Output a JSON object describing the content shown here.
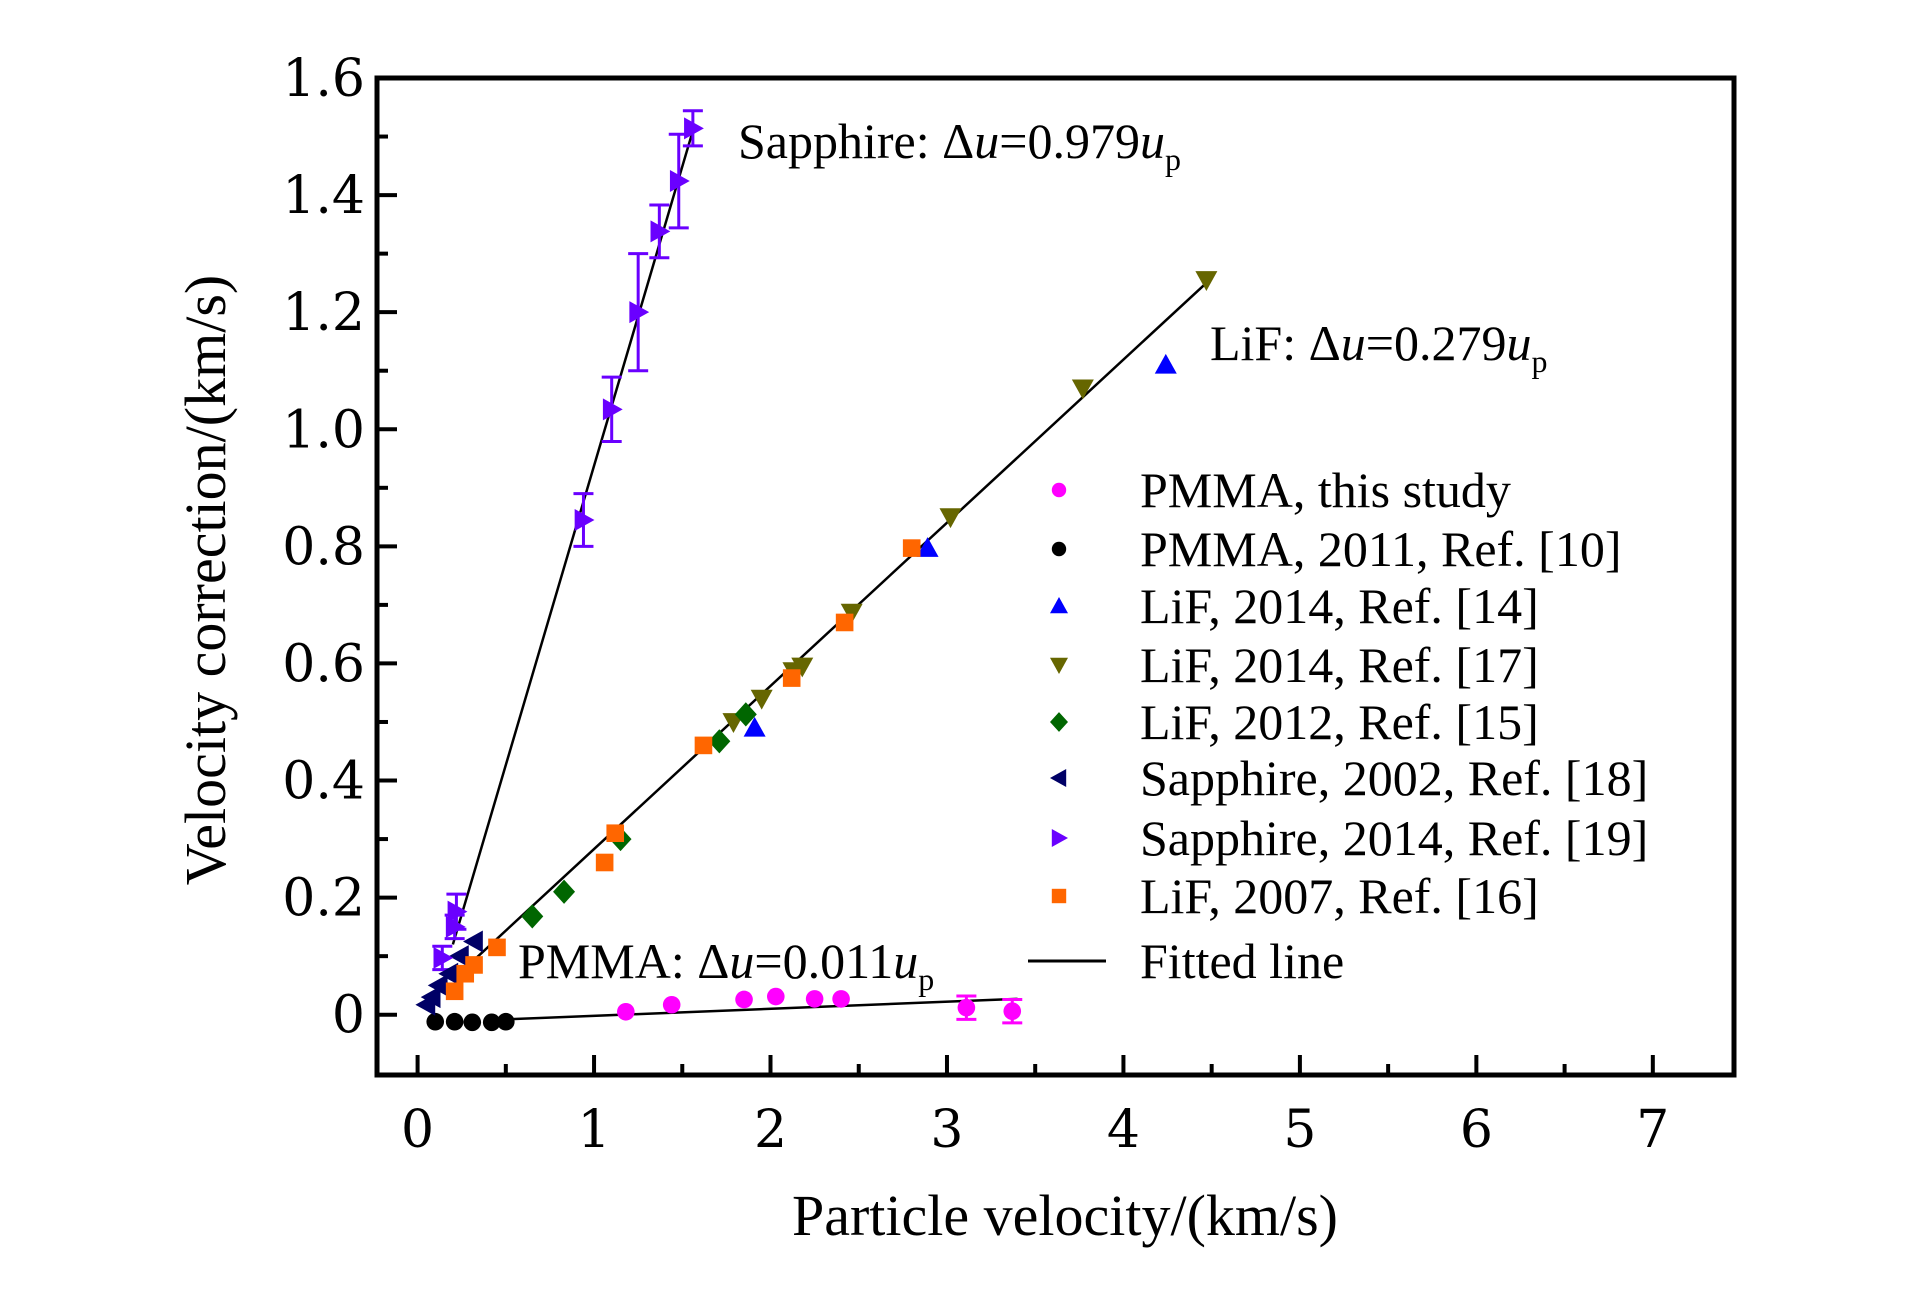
{
  "chart_data": {
    "type": "scatter",
    "title": "",
    "xlabel": "Particle velocity/(km/s)",
    "ylabel": "Velocity correction/(km/s)",
    "xlim": [
      -0.23,
      7.46
    ],
    "ylim": [
      -0.103,
      1.6
    ],
    "x_ticks": [
      0,
      1,
      2,
      3,
      4,
      5,
      6,
      7
    ],
    "x_tick_labels": [
      "0",
      "1",
      "2",
      "3",
      "4",
      "5",
      "6",
      "7"
    ],
    "x_minor_ticks": [
      0.5,
      1.5,
      2.5,
      3.5,
      4.5,
      5.5,
      6.5,
      7.5
    ],
    "y_ticks": [
      0,
      0.2,
      0.4,
      0.6,
      0.8,
      1.0,
      1.2,
      1.4,
      1.6
    ],
    "y_tick_labels": [
      "0",
      "0.2",
      "0.4",
      "0.6",
      "0.8",
      "1.0",
      "1.2",
      "1.4",
      "1.6"
    ],
    "y_minor_ticks": [
      0.1,
      0.3,
      0.5,
      0.7,
      0.9,
      1.1,
      1.3,
      1.5
    ],
    "grid": false,
    "legend_position": "center-right",
    "series": [
      {
        "name": "PMMA, this study",
        "marker": "circle",
        "color": "#ff00ff",
        "points": [
          [
            1.18,
            0.005
          ],
          [
            1.44,
            0.017
          ],
          [
            1.85,
            0.026
          ],
          [
            2.03,
            0.031
          ],
          [
            2.25,
            0.027
          ],
          [
            2.4,
            0.027
          ],
          [
            3.11,
            0.012
          ],
          [
            3.37,
            0.006
          ]
        ],
        "errors": [
          0,
          0,
          0,
          0,
          0,
          0,
          0.02,
          0.02
        ]
      },
      {
        "name": "PMMA, 2011, Ref. [10]",
        "marker": "circle",
        "color": "#000000",
        "points": [
          [
            0.1,
            -0.012
          ],
          [
            0.21,
            -0.012
          ],
          [
            0.31,
            -0.013
          ],
          [
            0.42,
            -0.013
          ],
          [
            0.5,
            -0.012
          ]
        ]
      },
      {
        "name": "LiF, 2014, Ref. [14]",
        "marker": "triangle-up",
        "color": "#0000ff",
        "points": [
          [
            1.91,
            0.49
          ],
          [
            2.89,
            0.797
          ],
          [
            4.24,
            1.11
          ]
        ]
      },
      {
        "name": "LiF, 2014, Ref. [17]",
        "marker": "triangle-down",
        "color": "#666600",
        "points": [
          [
            1.79,
            0.5
          ],
          [
            1.95,
            0.54
          ],
          [
            2.13,
            0.587
          ],
          [
            2.18,
            0.595
          ],
          [
            2.46,
            0.687
          ],
          [
            3.02,
            0.85
          ],
          [
            3.77,
            1.07
          ],
          [
            4.47,
            1.255
          ]
        ]
      },
      {
        "name": "LiF, 2012, Ref. [15]",
        "marker": "diamond",
        "color": "#006600",
        "points": [
          [
            0.65,
            0.168
          ],
          [
            0.83,
            0.21
          ],
          [
            1.15,
            0.3
          ],
          [
            1.71,
            0.467
          ],
          [
            1.86,
            0.513
          ]
        ]
      },
      {
        "name": "Sapphire, 2002, Ref. [18]",
        "marker": "triangle-left",
        "color": "#000066",
        "points": [
          [
            0.05,
            0.017
          ],
          [
            0.08,
            0.03
          ],
          [
            0.12,
            0.05
          ],
          [
            0.18,
            0.07
          ],
          [
            0.24,
            0.1
          ],
          [
            0.32,
            0.125
          ]
        ]
      },
      {
        "name": "Sapphire, 2014, Ref. [19]",
        "marker": "triangle-right",
        "color": "#6a00ff",
        "points": [
          [
            0.14,
            0.097
          ],
          [
            0.21,
            0.15
          ],
          [
            0.22,
            0.176
          ],
          [
            0.94,
            0.845
          ],
          [
            1.1,
            1.034
          ],
          [
            1.25,
            1.2
          ],
          [
            1.37,
            1.338
          ],
          [
            1.48,
            1.424
          ],
          [
            1.56,
            1.514
          ]
        ],
        "errors": [
          0.02,
          0.02,
          0.03,
          0.045,
          0.055,
          0.1,
          0.045,
          0.08,
          0.03
        ]
      },
      {
        "name": "LiF, 2007, Ref. [16]",
        "marker": "square",
        "color": "#ff6600",
        "points": [
          [
            0.21,
            0.04
          ],
          [
            0.27,
            0.07
          ],
          [
            0.32,
            0.085
          ],
          [
            0.45,
            0.115
          ],
          [
            1.06,
            0.26
          ],
          [
            1.12,
            0.31
          ],
          [
            1.62,
            0.46
          ],
          [
            2.12,
            0.575
          ],
          [
            2.42,
            0.67
          ],
          [
            2.8,
            0.797
          ]
        ]
      }
    ],
    "fitted_lines": [
      {
        "name": "Sapphire",
        "slope": 0.979,
        "x_range": [
          0.2,
          1.56
        ],
        "y_range": [
          0.12,
          1.51
        ],
        "label": "Sapphire: ",
        "label_rest": "=0.979"
      },
      {
        "name": "LiF",
        "slope": 0.279,
        "x_range": [
          0.2,
          4.47
        ],
        "y_range": [
          0.06,
          1.25
        ],
        "label": "LiF: ",
        "label_rest": "=0.279"
      },
      {
        "name": "PMMA",
        "slope": 0.011,
        "x_range": [
          0.5,
          3.4
        ],
        "y_range": [
          -0.008,
          0.027
        ],
        "label": "PMMA: ",
        "label_rest": "=0.011"
      }
    ],
    "fitted_line_legend": "Fitted line",
    "annotation_symbols": {
      "delta": "Δ",
      "u": "u",
      "sub": "p"
    }
  }
}
